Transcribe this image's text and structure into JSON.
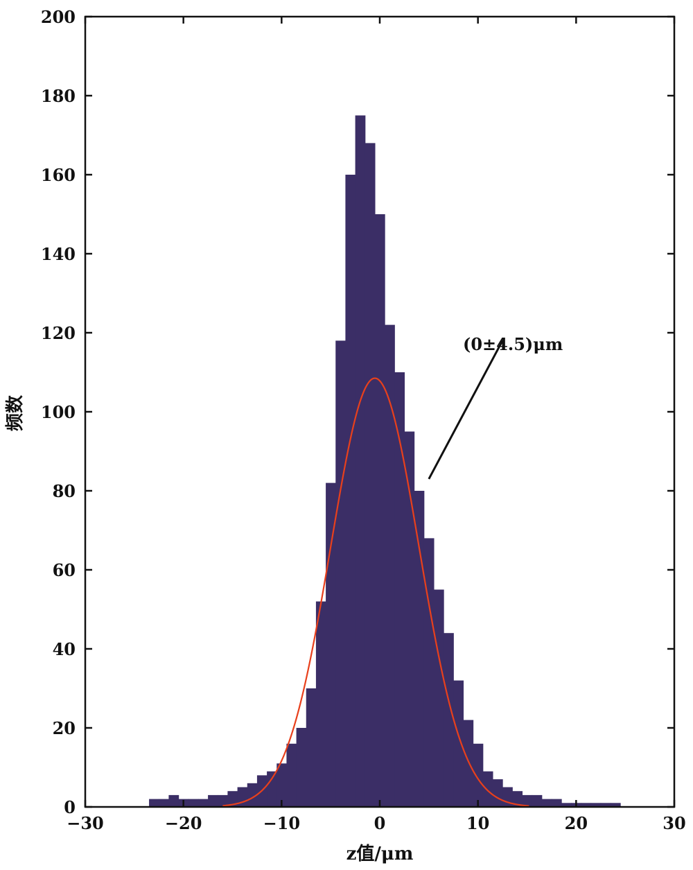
{
  "chart_data": {
    "type": "bar",
    "title": "",
    "xlabel": "z值/μm",
    "ylabel": "频数",
    "xlim": [
      -30,
      30
    ],
    "ylim": [
      0,
      200
    ],
    "xticks": [
      -30,
      -20,
      -10,
      0,
      10,
      20,
      30
    ],
    "yticks": [
      0,
      20,
      40,
      60,
      80,
      100,
      120,
      140,
      160,
      180,
      200
    ],
    "grid": false,
    "colors": {
      "histogram": "#3b2e66",
      "fit": "#e8401c",
      "annotation_line": "#111111"
    },
    "histogram": {
      "x": [
        -23,
        -22,
        -21,
        -20,
        -19,
        -18,
        -17,
        -16,
        -15,
        -14,
        -13,
        -12,
        -11,
        -10,
        -9,
        -8,
        -7,
        -6,
        -5,
        -4,
        -3,
        -2,
        -1,
        0,
        1,
        2,
        3,
        4,
        5,
        6,
        7,
        8,
        9,
        10,
        11,
        12,
        13,
        14,
        15,
        16,
        17,
        18,
        19,
        20,
        21,
        22,
        23,
        24
      ],
      "values": [
        2,
        2,
        3,
        2,
        2,
        2,
        3,
        3,
        4,
        5,
        6,
        8,
        9,
        11,
        16,
        20,
        30,
        52,
        82,
        118,
        160,
        175,
        168,
        150,
        122,
        110,
        95,
        80,
        68,
        55,
        44,
        32,
        22,
        16,
        9,
        7,
        5,
        4,
        3,
        3,
        2,
        2,
        1,
        1,
        1,
        1,
        1,
        1
      ]
    },
    "fit": {
      "type": "gaussian",
      "mean": -0.5,
      "sigma": 4.5,
      "peak": 108.5
    },
    "annotation": {
      "text": "(0±4.5)μm",
      "from": [
        12.5,
        118
      ],
      "to": [
        5,
        83
      ]
    }
  }
}
